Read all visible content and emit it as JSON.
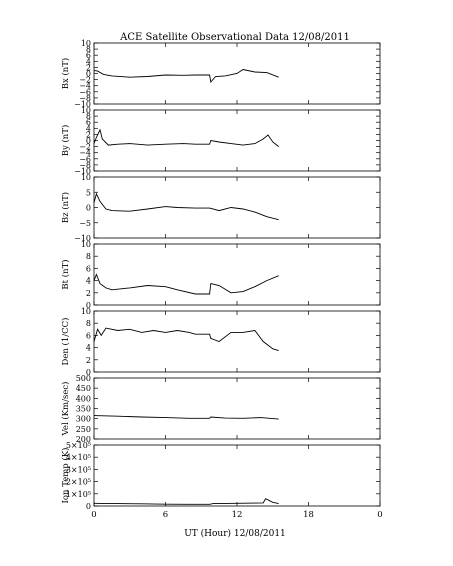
{
  "title": "ACE Satellite Observational Data   12/08/2011",
  "xlabel": "UT (Hour)   12/08/2011",
  "x_ticks": [
    "0",
    "6",
    "12",
    "18",
    "0"
  ],
  "chart_data": [
    {
      "type": "line",
      "ylabel": "Bx (nT)",
      "ylim": [
        -10,
        10
      ],
      "ytick_labels": [
        "−10",
        "−8",
        "−6",
        "−4",
        "−2",
        "0",
        "2",
        "4",
        "6",
        "8",
        "10"
      ],
      "series": [
        {
          "x": [
            0,
            0.3,
            0.8,
            1.5,
            3,
            4.5,
            6,
            7.5,
            8.5,
            9.7,
            9.8,
            10.2,
            11,
            12,
            12.5,
            13.5,
            14.5,
            15.5
          ],
          "y": [
            1,
            0.8,
            -0.3,
            -0.8,
            -1.2,
            -1,
            -0.5,
            -0.6,
            -0.5,
            -0.5,
            -2.8,
            -1,
            -0.8,
            0,
            1.3,
            0.5,
            0.3,
            -1.2
          ]
        }
      ]
    },
    {
      "type": "line",
      "ylabel": "By (nT)",
      "ylim": [
        -10,
        10
      ],
      "ytick_labels": [
        "−10",
        "−8",
        "−6",
        "−4",
        "−2",
        "0",
        "2",
        "4",
        "6",
        "8",
        "10"
      ],
      "series": [
        {
          "x": [
            0,
            0.2,
            0.5,
            0.7,
            1.2,
            2,
            3,
            4.5,
            6,
            7.5,
            8.5,
            9.7,
            9.8,
            10.5,
            11.5,
            12.5,
            13.5,
            14.2,
            14.6,
            15,
            15.5
          ],
          "y": [
            -1,
            1,
            3.5,
            0.5,
            -1.5,
            -1.2,
            -1,
            -1.5,
            -1.2,
            -1,
            -1.2,
            -1.2,
            0,
            -0.5,
            -1,
            -1.5,
            -1,
            0.5,
            1.8,
            -0.5,
            -2
          ]
        }
      ]
    },
    {
      "type": "line",
      "ylabel": "Bz (nT)",
      "ylim": [
        -10,
        10
      ],
      "ytick_labels": [
        "−10",
        "−5",
        "0",
        "5",
        "10"
      ],
      "series": [
        {
          "x": [
            0,
            0.2,
            0.5,
            1,
            1.5,
            3,
            4.5,
            6,
            7,
            8.5,
            9.7,
            10.5,
            11.5,
            12.5,
            13.5,
            14.5,
            15.5
          ],
          "y": [
            1.5,
            4.5,
            2,
            -0.5,
            -1,
            -1.2,
            -0.5,
            0.3,
            0,
            -0.2,
            -0.2,
            -1,
            0,
            -0.5,
            -1.5,
            -3,
            -4
          ]
        }
      ]
    },
    {
      "type": "line",
      "ylabel": "Bt (nT)",
      "ylim": [
        0,
        10
      ],
      "ytick_labels": [
        "0",
        "2",
        "4",
        "6",
        "8",
        "10"
      ],
      "series": [
        {
          "x": [
            0,
            0.2,
            0.5,
            1,
            1.5,
            3,
            4.5,
            6,
            7,
            8.5,
            9.7,
            9.8,
            10.5,
            11.5,
            12.5,
            13.5,
            14.5,
            15.5
          ],
          "y": [
            4,
            5,
            3.5,
            2.8,
            2.5,
            2.8,
            3.2,
            3,
            2.5,
            1.8,
            1.8,
            3.5,
            3.2,
            2,
            2.2,
            3,
            4,
            4.8
          ]
        }
      ]
    },
    {
      "type": "line",
      "ylabel": "Den (1/CC)",
      "ylim": [
        0,
        10
      ],
      "ytick_labels": [
        "0",
        "2",
        "4",
        "6",
        "8",
        "10"
      ],
      "series": [
        {
          "x": [
            0,
            0.3,
            0.6,
            1,
            2,
            3,
            4,
            5,
            6,
            7,
            8,
            8.5,
            9.7,
            9.8,
            10.5,
            11.5,
            12.5,
            13.5,
            14.2,
            15,
            15.5
          ],
          "y": [
            5,
            7,
            6,
            7.2,
            6.8,
            7,
            6.5,
            6.8,
            6.5,
            6.8,
            6.5,
            6.2,
            6.2,
            5.5,
            5,
            6.5,
            6.5,
            6.8,
            5,
            3.8,
            3.5
          ]
        }
      ]
    },
    {
      "type": "line",
      "ylabel": "Vel (Km/sec)",
      "ylim": [
        200,
        500
      ],
      "ytick_labels": [
        "200",
        "250",
        "300",
        "350",
        "400",
        "450",
        "500"
      ],
      "series": [
        {
          "x": [
            0,
            2,
            4,
            6,
            8,
            9.7,
            9.8,
            11,
            12.5,
            14,
            15.5
          ],
          "y": [
            315,
            312,
            308,
            305,
            302,
            302,
            308,
            303,
            302,
            305,
            298
          ]
        }
      ]
    },
    {
      "type": "line",
      "ylabel": "Ion Temp (K)",
      "ylim": [
        0,
        500000
      ],
      "ytick_labels": [
        "0",
        "1×10⁵",
        "2×10⁵",
        "3×10⁵",
        "4×10⁵",
        "5×10⁵"
      ],
      "series": [
        {
          "x": [
            0,
            1,
            2,
            4,
            6,
            8,
            9.7,
            10,
            12,
            13.5,
            14.2,
            14.4,
            15,
            15.5
          ],
          "y": [
            22000,
            20000,
            20000,
            18000,
            15000,
            14000,
            14000,
            20000,
            22000,
            24000,
            25000,
            60000,
            30000,
            20000
          ]
        }
      ]
    }
  ]
}
